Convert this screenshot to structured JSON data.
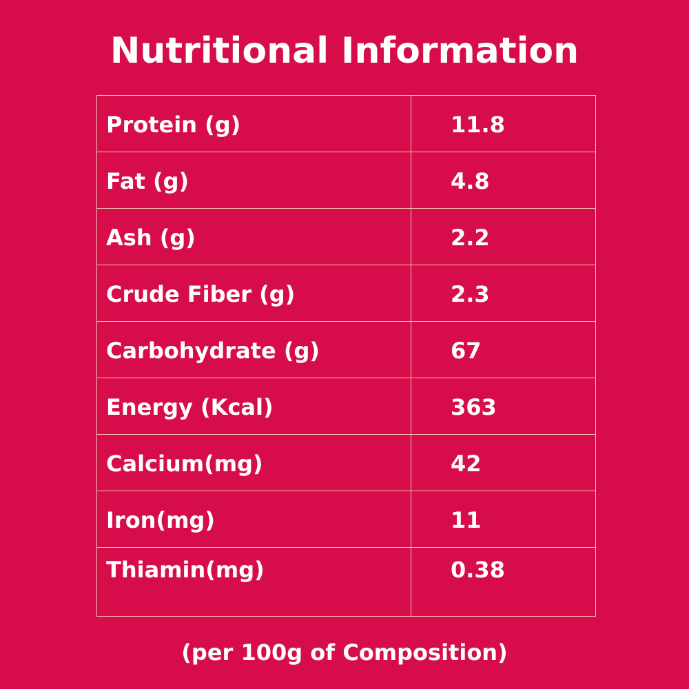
{
  "title": "Nutritional Information",
  "colors": {
    "background": "#d60d4a",
    "text": "#ffffff",
    "grid_lines": "#f6c3b6"
  },
  "table": {
    "rows": [
      {
        "label": "Protein (g)",
        "value": "11.8"
      },
      {
        "label": "Fat (g)",
        "value": "4.8"
      },
      {
        "label": "Ash (g)",
        "value": "2.2"
      },
      {
        "label": "Crude Fiber (g)",
        "value": "2.3"
      },
      {
        "label": "Carbohydrate (g)",
        "value": "67"
      },
      {
        "label": "Energy (Kcal)",
        "value": "363"
      },
      {
        "label": "Calcium(mg)",
        "value": "42"
      },
      {
        "label": "Iron(mg)",
        "value": "11"
      },
      {
        "label": "Thiamin(mg)",
        "value": "0.38"
      }
    ]
  },
  "footnote": "(per 100g of Composition)"
}
